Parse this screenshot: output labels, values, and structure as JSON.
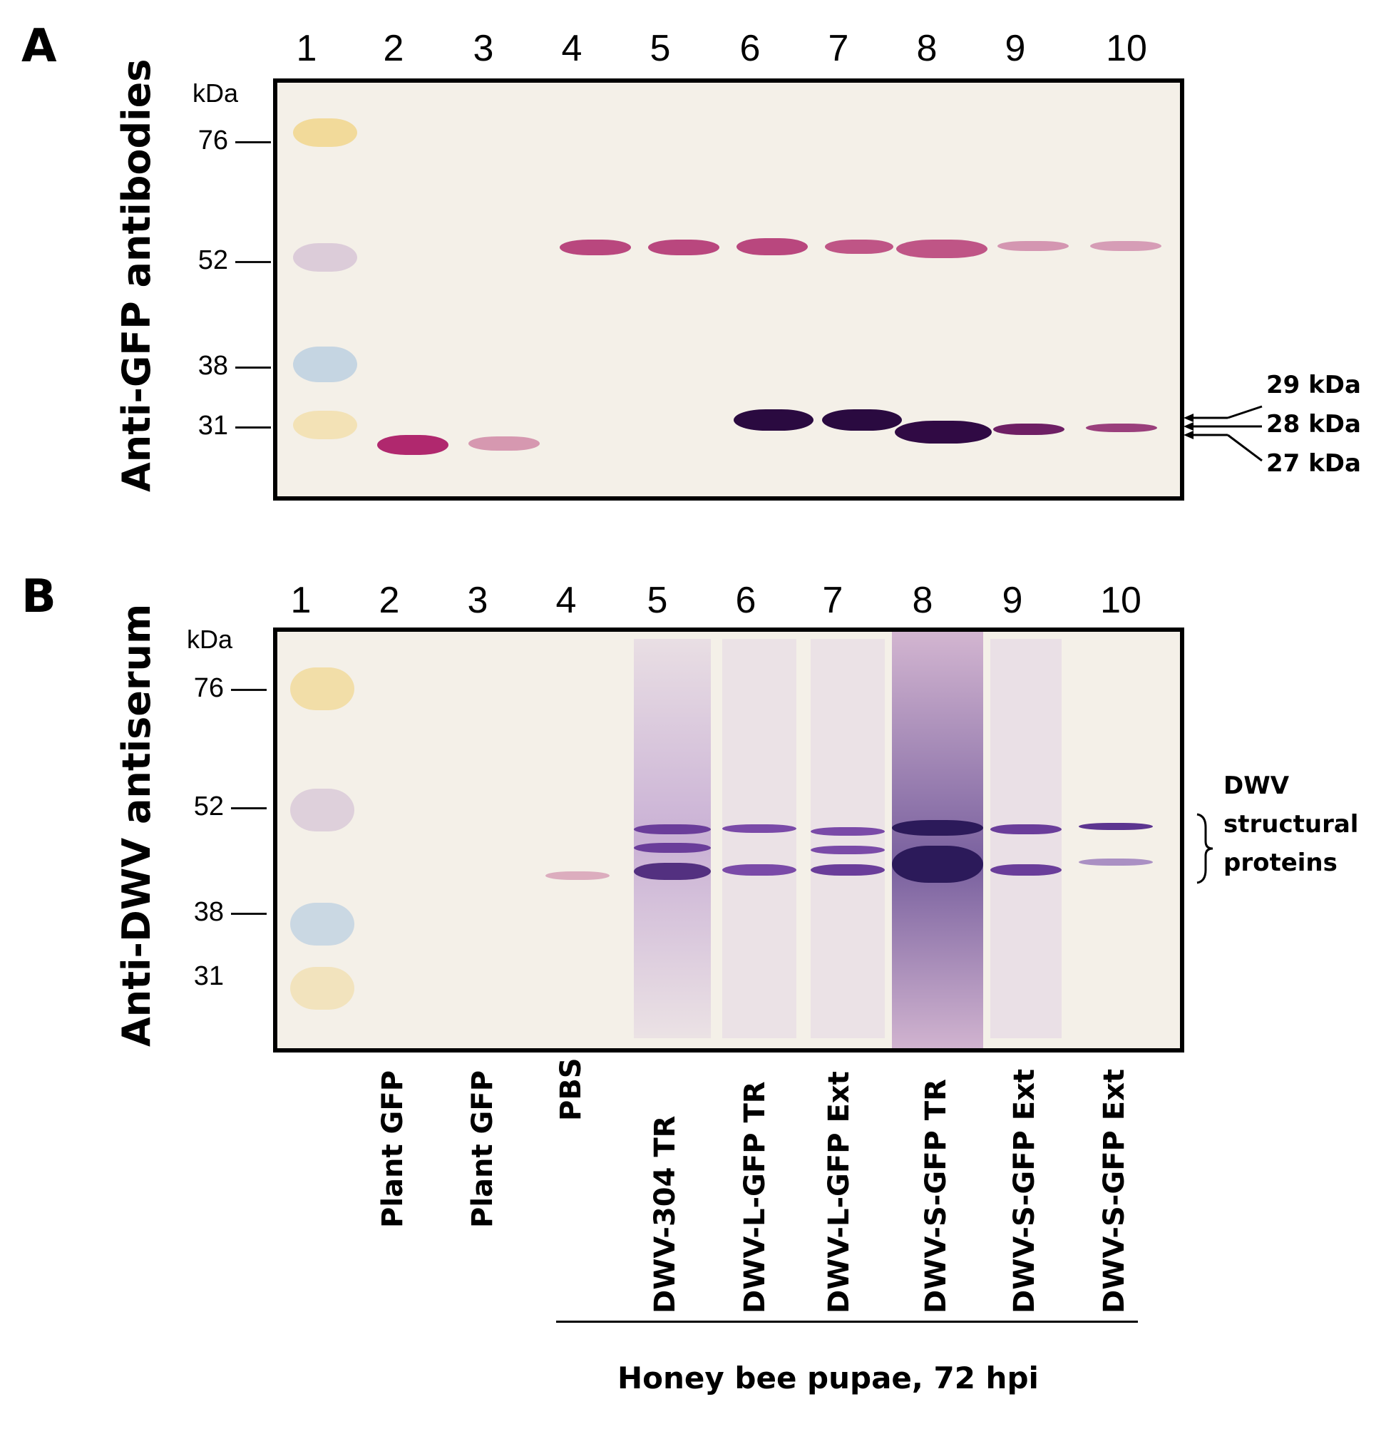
{
  "panels": {
    "a": {
      "letter": "A",
      "title": "Anti-GFP antibodies",
      "lane_numbers": [
        "1",
        "2",
        "3",
        "4",
        "5",
        "6",
        "7",
        "8",
        "9",
        "10"
      ],
      "kda_label": "kDa",
      "markers": [
        "76",
        "52",
        "38",
        "31"
      ],
      "annotations": [
        "29 kDa",
        "28 kDa",
        "27 kDa"
      ]
    },
    "b": {
      "letter": "B",
      "title": "Anti-DWV antiserum",
      "lane_numbers": [
        "1",
        "2",
        "3",
        "4",
        "5",
        "6",
        "7",
        "8",
        "9",
        "10"
      ],
      "kda_label": "kDa",
      "markers": [
        "76",
        "52",
        "38",
        "31"
      ],
      "annotation_lines": [
        "DWV",
        "structural",
        "proteins"
      ]
    }
  },
  "lane_labels": [
    "Plant GFP",
    "Plant GFP",
    "PBS",
    "DWV-304 TR",
    "DWV-L-GFP TR",
    "DWV-L-GFP Ext",
    "DWV-S-GFP TR",
    "DWV-S-GFP Ext",
    "DWV-S-GFP Ext"
  ],
  "footer": "Honey bee pupae, 72 hpi"
}
